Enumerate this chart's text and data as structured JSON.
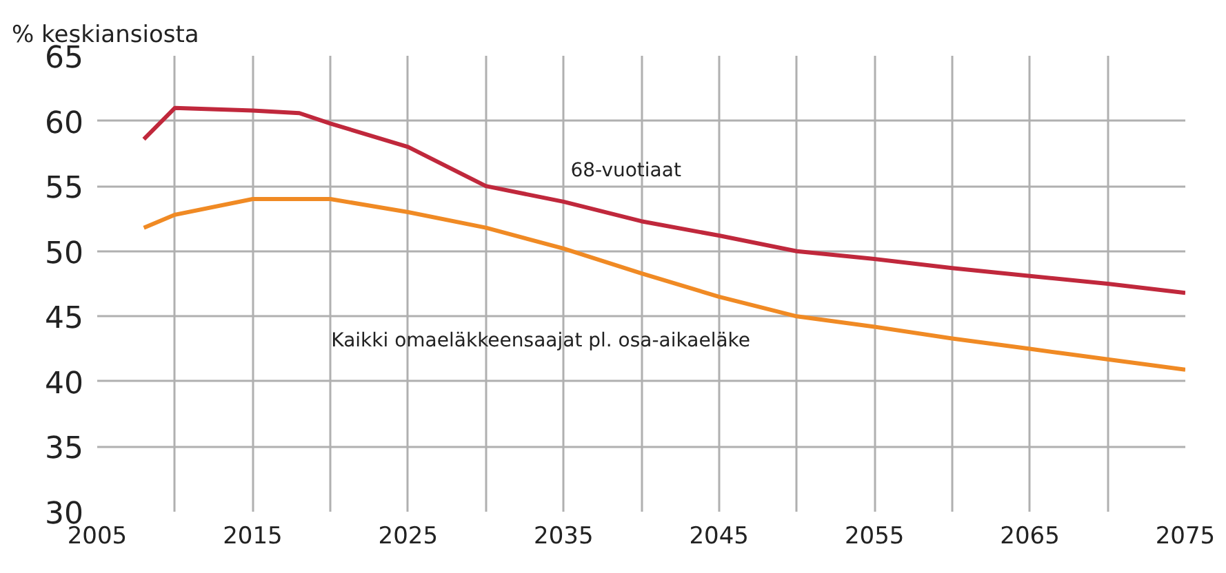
{
  "chart_data": {
    "type": "line",
    "ylabel": "% keskiansiosta",
    "x": [
      2008,
      2010,
      2015,
      2018,
      2020,
      2025,
      2030,
      2035,
      2040,
      2045,
      2050,
      2055,
      2060,
      2065,
      2070,
      2075
    ],
    "series": [
      {
        "name": "68-vuotiaat",
        "color": "#c0283c",
        "values": [
          58.6,
          61,
          60.8,
          60.6,
          59.8,
          58,
          55,
          53.8,
          52.3,
          51.2,
          50,
          49.4,
          48.7,
          48.1,
          47.5,
          46.8
        ]
      },
      {
        "name": "Kaikki omaeläkkeensaajat pl. osa-aikaeläke",
        "color": "#f08a24",
        "values": [
          51.8,
          52.8,
          54,
          54,
          54,
          53,
          51.8,
          50.2,
          48.3,
          46.5,
          45,
          44.2,
          43.3,
          42.5,
          41.7,
          40.9
        ]
      }
    ],
    "xlim": [
      2005,
      2075
    ],
    "xticks": [
      2005,
      {
        "value": 2010,
        "label": null
      },
      2015,
      {
        "value": 2020,
        "label": null
      },
      2025,
      {
        "value": 2030,
        "label": null
      },
      2035,
      {
        "value": 2040,
        "label": null
      },
      2045,
      {
        "value": 2050,
        "label": null
      },
      2055,
      {
        "value": 2060,
        "label": null
      },
      2065,
      {
        "value": 2070,
        "label": null
      },
      2075
    ],
    "ylim": [
      30,
      65
    ],
    "yticks": [
      30,
      35,
      40,
      45,
      50,
      55,
      60,
      65
    ],
    "grid": true,
    "marker": "none",
    "line_style": "solid"
  }
}
